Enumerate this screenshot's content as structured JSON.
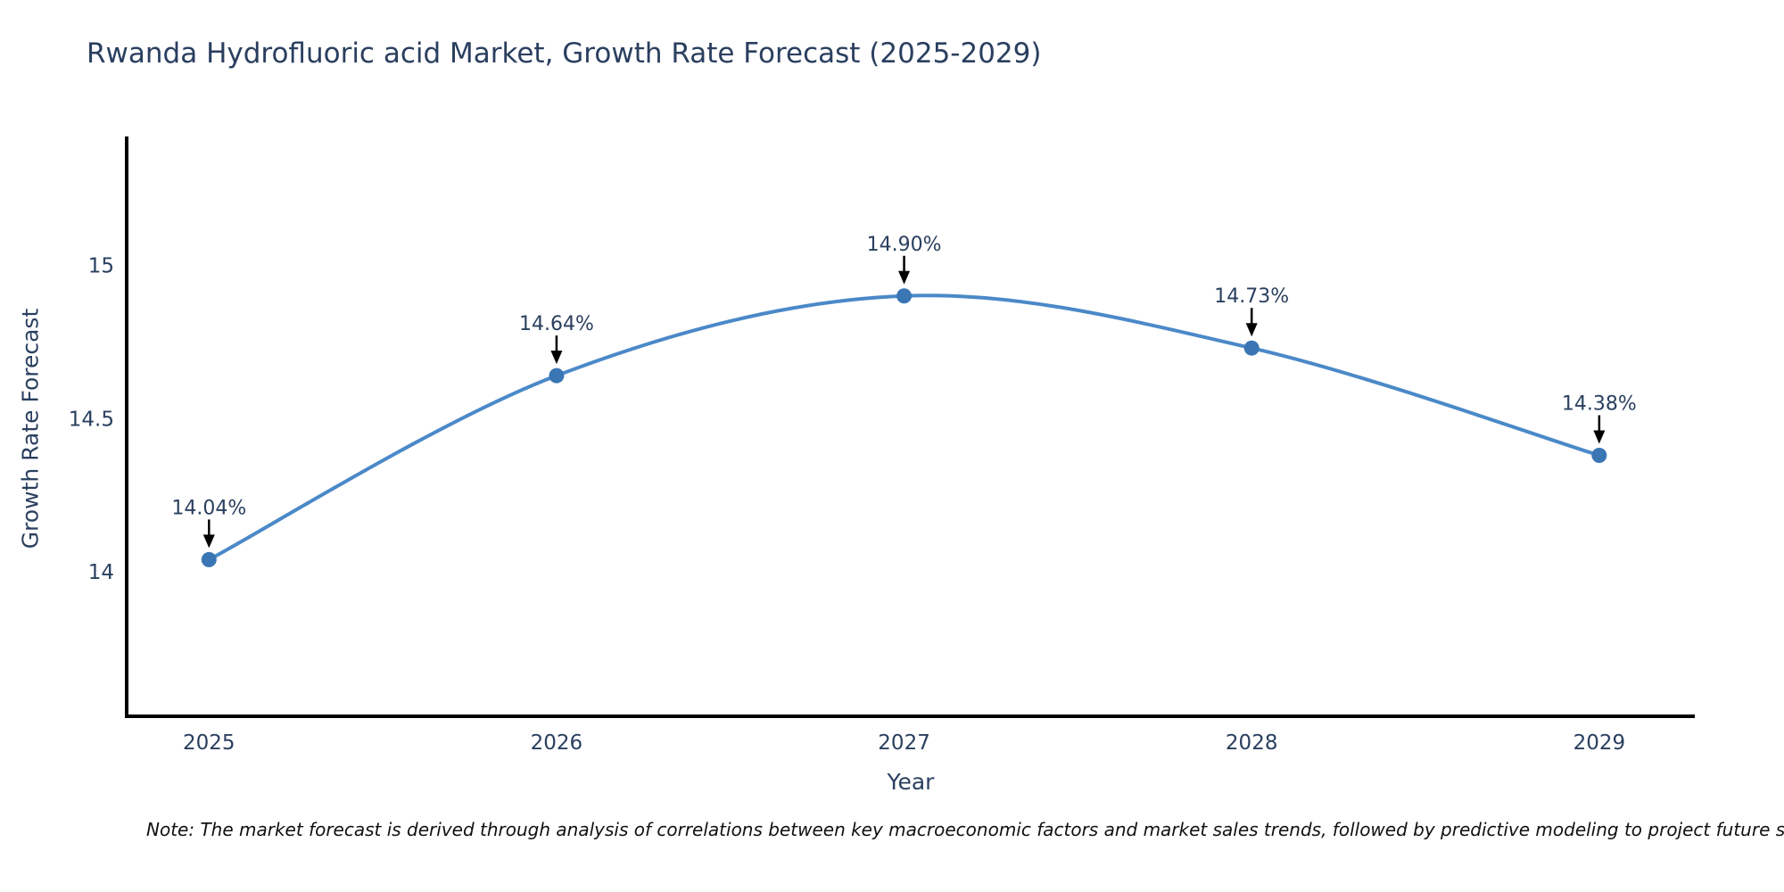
{
  "title": {
    "text": "Rwanda Hydrofluoric acid Market, Growth Rate Forecast (2025-2029)",
    "color": "#2a3f5f"
  },
  "chart_data": {
    "type": "line",
    "line_shape": "spline",
    "x": [
      2025,
      2026,
      2027,
      2028,
      2029
    ],
    "xtick_labels": [
      "2025",
      "2026",
      "2027",
      "2028",
      "2029"
    ],
    "series": [
      {
        "name": "Growth Rate Forecast",
        "values": [
          14.04,
          14.64,
          14.9,
          14.73,
          14.38
        ]
      }
    ],
    "point_labels": [
      "14.04%",
      "14.64%",
      "14.90%",
      "14.73%",
      "14.38%"
    ],
    "title": "Rwanda Hydrofluoric acid Market, Growth Rate Forecast (2025-2029)",
    "xlabel": "Year",
    "ylabel": "Growth Rate Forecast",
    "yticks": [
      14,
      14.5,
      15
    ],
    "ytick_labels": [
      "14",
      "14.5",
      "15"
    ],
    "ylim": [
      13.535,
      15.42
    ],
    "xlim": [
      2024.758,
      2029.275
    ],
    "grid": false,
    "legend": "none",
    "line_color": "#4b89c8",
    "marker_color": "#3a76b4",
    "axis_color": "#000000",
    "tick_color": "#2a3f5f",
    "annotation_color": "#2a3f5f",
    "annotation_arrow_color": "#000000"
  },
  "note": {
    "text": "Note: The market forecast is derived through analysis of correlations between key macroeconomic factors and market sales trends, followed by predictive modeling to project future sal"
  }
}
